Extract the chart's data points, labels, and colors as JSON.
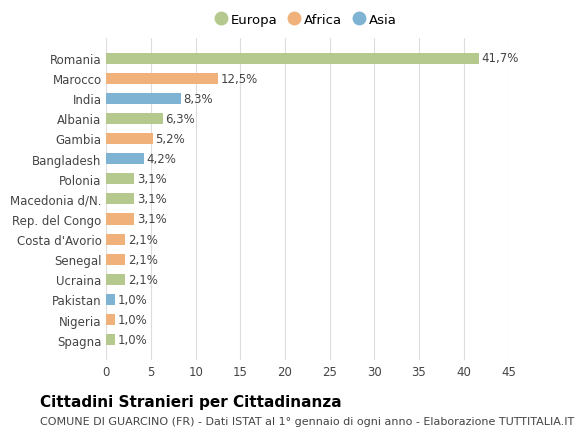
{
  "categories": [
    "Romania",
    "Marocco",
    "India",
    "Albania",
    "Gambia",
    "Bangladesh",
    "Polonia",
    "Macedonia d/N.",
    "Rep. del Congo",
    "Costa d'Avorio",
    "Senegal",
    "Ucraina",
    "Pakistan",
    "Nigeria",
    "Spagna"
  ],
  "values": [
    41.7,
    12.5,
    8.3,
    6.3,
    5.2,
    4.2,
    3.1,
    3.1,
    3.1,
    2.1,
    2.1,
    2.1,
    1.0,
    1.0,
    1.0
  ],
  "labels": [
    "41,7%",
    "12,5%",
    "8,3%",
    "6,3%",
    "5,2%",
    "4,2%",
    "3,1%",
    "3,1%",
    "3,1%",
    "2,1%",
    "2,1%",
    "2,1%",
    "1,0%",
    "1,0%",
    "1,0%"
  ],
  "continents": [
    "Europa",
    "Africa",
    "Asia",
    "Europa",
    "Africa",
    "Asia",
    "Europa",
    "Europa",
    "Africa",
    "Africa",
    "Africa",
    "Europa",
    "Asia",
    "Africa",
    "Europa"
  ],
  "colors": {
    "Europa": "#b5c98e",
    "Africa": "#f0b27a",
    "Asia": "#7fb3d3"
  },
  "legend_labels": [
    "Europa",
    "Africa",
    "Asia"
  ],
  "xlim": [
    0,
    45
  ],
  "xticks": [
    0,
    5,
    10,
    15,
    20,
    25,
    30,
    35,
    40,
    45
  ],
  "title": "Cittadini Stranieri per Cittadinanza",
  "subtitle": "COMUNE DI GUARCINO (FR) - Dati ISTAT al 1° gennaio di ogni anno - Elaborazione TUTTITALIA.IT",
  "bg_color": "#ffffff",
  "grid_color": "#dddddd",
  "bar_height": 0.55,
  "label_fontsize": 8.5,
  "tick_fontsize": 8.5,
  "title_fontsize": 11,
  "subtitle_fontsize": 8
}
